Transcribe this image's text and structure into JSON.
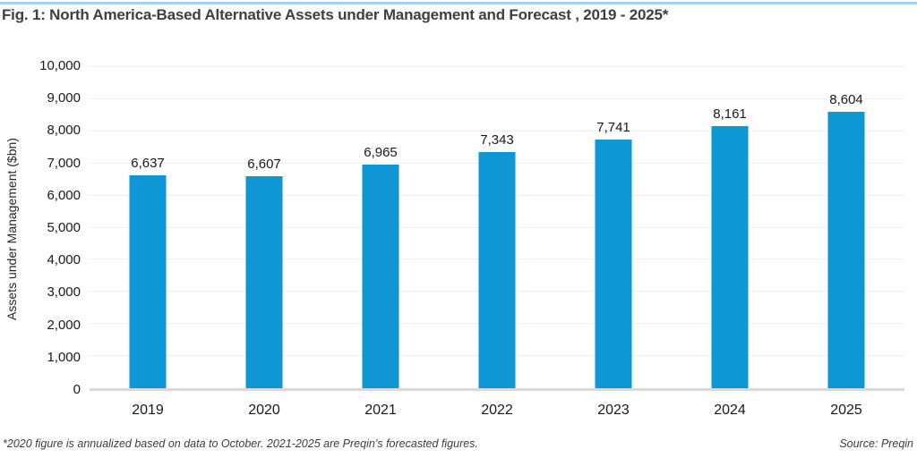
{
  "page": {
    "title": "Fig. 1: North America-Based Alternative Assets under Management and Forecast , 2019 - 2025*",
    "footnote": "*2020 figure is annualized based on data to October. 2021-2025 are Preqin’s forecasted figures.",
    "source": "Source: Preqin"
  },
  "colors": {
    "bar": "#0e96d5",
    "top_rule": "#a5d2ec",
    "gridline": "#efefef",
    "baseline": "#d9d9d9",
    "title_text": "#3f3f3f",
    "label_text": "#1a1a1a",
    "footnote_text": "#3d3d3d"
  },
  "chart_data": {
    "type": "bar",
    "title": "Fig. 1: North America-Based Alternative Assets under Management and Forecast , 2019 - 2025*",
    "categories": [
      "2019",
      "2020",
      "2021",
      "2022",
      "2023",
      "2024",
      "2025"
    ],
    "values": [
      6637,
      6607,
      6965,
      7343,
      7741,
      8161,
      8604
    ],
    "value_labels": [
      "6,637",
      "6,607",
      "6,965",
      "7,343",
      "7,741",
      "8,161",
      "8,604"
    ],
    "xlabel": "",
    "ylabel": "Assets under Management ($bn)",
    "ylim": [
      0,
      10000
    ],
    "ytick_step": 1000,
    "ytick_labels": [
      "0",
      "1,000",
      "2,000",
      "3,000",
      "4,000",
      "5,000",
      "6,000",
      "7,000",
      "8,000",
      "9,000",
      "10,000"
    ],
    "grid": true,
    "legend": false
  }
}
